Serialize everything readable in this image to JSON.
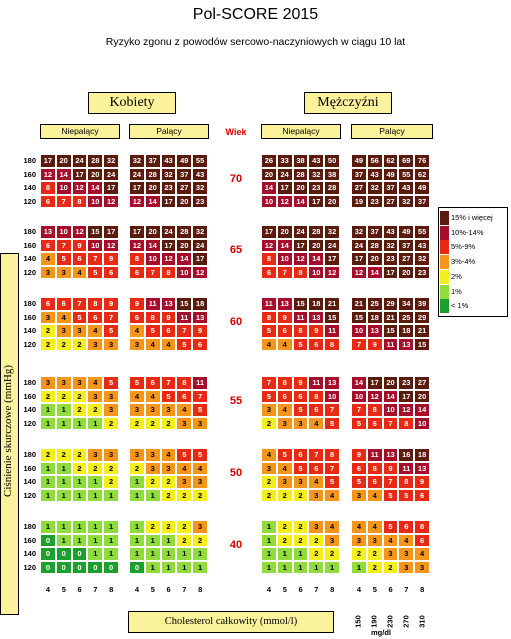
{
  "title": "Pol-SCORE 2015",
  "subtitle": "Ryzyko zgonu z powodów sercowo-naczyniowych w ciągu 10 lat",
  "women_label": "Kobiety",
  "men_label": "Mężczyźni",
  "nonsmoker_label": "Niepalący",
  "smoker_label": "Palący",
  "age_header": "Wiek",
  "y_axis_label": "Ciśnienie skurczowe (mmHg)",
  "x_axis_label": "Cholesterol całkowity (mmol/l)",
  "mgdl_unit": "mg/dl",
  "mgdl_ticks": [
    "150",
    "190",
    "230",
    "270",
    "310"
  ],
  "legend": [
    {
      "label": "15% i więcej",
      "color": "#5a1a0c"
    },
    {
      "label": "10%-14%",
      "color": "#a50d2a"
    },
    {
      "label": "5%-9%",
      "color": "#e82a14"
    },
    {
      "label": "3%-4%",
      "color": "#f5961a"
    },
    {
      "label": "2%",
      "color": "#f4ee1d"
    },
    {
      "label": "1%",
      "color": "#90dc3c"
    },
    {
      "label": "< 1%",
      "color": "#1ba02e"
    }
  ],
  "chart_data": {
    "type": "table",
    "title": "Pol-SCORE 2015",
    "subtitle": "Ryzyko zgonu z powodów sercowo-naczyniowych w ciągu 10 lat",
    "ages": [
      70,
      65,
      60,
      55,
      50,
      40
    ],
    "systolic_bp": [
      180,
      160,
      140,
      120
    ],
    "cholesterol": [
      4,
      5,
      6,
      7,
      8
    ],
    "groups": [
      "women_nonsmoker",
      "women_smoker",
      "men_nonsmoker",
      "men_smoker"
    ],
    "values": {
      "70": {
        "women_nonsmoker": [
          [
            17,
            20,
            24,
            28,
            32
          ],
          [
            12,
            14,
            17,
            20,
            24
          ],
          [
            8,
            10,
            12,
            14,
            17
          ],
          [
            6,
            7,
            8,
            10,
            12
          ]
        ],
        "women_smoker": [
          [
            32,
            37,
            43,
            49,
            55
          ],
          [
            24,
            28,
            32,
            37,
            43
          ],
          [
            17,
            20,
            23,
            27,
            32
          ],
          [
            12,
            14,
            17,
            20,
            23
          ]
        ],
        "men_nonsmoker": [
          [
            26,
            33,
            38,
            43,
            50
          ],
          [
            20,
            24,
            28,
            32,
            38
          ],
          [
            14,
            17,
            20,
            23,
            28
          ],
          [
            10,
            12,
            14,
            17,
            20
          ]
        ],
        "men_smoker": [
          [
            49,
            56,
            62,
            69,
            76
          ],
          [
            37,
            43,
            49,
            55,
            62
          ],
          [
            27,
            32,
            37,
            43,
            49
          ],
          [
            19,
            23,
            27,
            32,
            37
          ]
        ]
      },
      "65": {
        "women_nonsmoker": [
          [
            13,
            10,
            12,
            15,
            17
          ],
          [
            6,
            7,
            9,
            10,
            12
          ],
          [
            4,
            5,
            6,
            7,
            9
          ],
          [
            3,
            3,
            4,
            5,
            6
          ]
        ],
        "women_smoker": [
          [
            17,
            20,
            24,
            28,
            32
          ],
          [
            12,
            14,
            17,
            20,
            24
          ],
          [
            8,
            10,
            12,
            14,
            17
          ],
          [
            6,
            7,
            8,
            10,
            12
          ]
        ],
        "men_nonsmoker": [
          [
            17,
            20,
            24,
            28,
            32
          ],
          [
            12,
            14,
            17,
            20,
            24
          ],
          [
            8,
            10,
            12,
            14,
            17
          ],
          [
            6,
            7,
            8,
            10,
            12
          ]
        ],
        "men_smoker": [
          [
            32,
            37,
            43,
            49,
            55
          ],
          [
            24,
            28,
            32,
            37,
            43
          ],
          [
            17,
            20,
            23,
            27,
            32
          ],
          [
            12,
            14,
            17,
            20,
            23
          ]
        ]
      },
      "60": {
        "women_nonsmoker": [
          [
            6,
            6,
            7,
            8,
            9
          ],
          [
            3,
            4,
            5,
            6,
            7
          ],
          [
            2,
            3,
            3,
            4,
            5
          ],
          [
            2,
            2,
            2,
            3,
            3
          ]
        ],
        "women_smoker": [
          [
            9,
            11,
            13,
            15,
            18
          ],
          [
            6,
            8,
            9,
            11,
            13
          ],
          [
            4,
            5,
            6,
            7,
            9
          ],
          [
            3,
            4,
            4,
            5,
            6
          ]
        ],
        "men_nonsmoker": [
          [
            11,
            13,
            15,
            18,
            21
          ],
          [
            8,
            9,
            11,
            13,
            15
          ],
          [
            5,
            6,
            8,
            9,
            11
          ],
          [
            4,
            4,
            5,
            6,
            8
          ]
        ],
        "men_smoker": [
          [
            21,
            25,
            29,
            34,
            39
          ],
          [
            15,
            18,
            21,
            25,
            29
          ],
          [
            10,
            13,
            15,
            18,
            21
          ],
          [
            7,
            9,
            11,
            13,
            15
          ]
        ]
      },
      "55": {
        "women_nonsmoker": [
          [
            3,
            3,
            3,
            4,
            5
          ],
          [
            2,
            2,
            2,
            3,
            3
          ],
          [
            1,
            1,
            2,
            2,
            3
          ],
          [
            1,
            1,
            1,
            1,
            2
          ]
        ],
        "women_smoker": [
          [
            5,
            6,
            7,
            8,
            11
          ],
          [
            4,
            4,
            5,
            6,
            7
          ],
          [
            3,
            3,
            3,
            4,
            5
          ],
          [
            2,
            2,
            2,
            3,
            3
          ]
        ],
        "men_nonsmoker": [
          [
            7,
            8,
            9,
            11,
            13
          ],
          [
            5,
            6,
            6,
            8,
            10
          ],
          [
            3,
            4,
            5,
            6,
            7
          ],
          [
            2,
            3,
            3,
            4,
            5
          ]
        ],
        "men_smoker": [
          [
            14,
            17,
            20,
            23,
            27
          ],
          [
            10,
            12,
            14,
            17,
            20
          ],
          [
            7,
            8,
            10,
            12,
            14
          ],
          [
            5,
            6,
            7,
            8,
            10
          ]
        ]
      },
      "50": {
        "women_nonsmoker": [
          [
            2,
            2,
            2,
            3,
            3
          ],
          [
            1,
            1,
            2,
            2,
            2
          ],
          [
            1,
            1,
            1,
            1,
            2
          ],
          [
            1,
            1,
            1,
            1,
            1
          ]
        ],
        "women_smoker": [
          [
            3,
            3,
            4,
            5,
            5
          ],
          [
            2,
            3,
            3,
            4,
            4
          ],
          [
            1,
            2,
            2,
            3,
            3
          ],
          [
            1,
            1,
            2,
            2,
            2
          ]
        ],
        "men_nonsmoker": [
          [
            4,
            5,
            6,
            7,
            8
          ],
          [
            3,
            4,
            5,
            6,
            7
          ],
          [
            2,
            3,
            3,
            4,
            5
          ],
          [
            2,
            2,
            2,
            3,
            4
          ]
        ],
        "men_smoker": [
          [
            9,
            11,
            13,
            16,
            18
          ],
          [
            6,
            8,
            9,
            11,
            13
          ],
          [
            5,
            6,
            7,
            8,
            9
          ],
          [
            3,
            4,
            5,
            5,
            6
          ]
        ]
      },
      "40": {
        "women_nonsmoker": [
          [
            1,
            1,
            1,
            1,
            1
          ],
          [
            0,
            1,
            1,
            1,
            1
          ],
          [
            0,
            0,
            0,
            1,
            1
          ],
          [
            0,
            0,
            0,
            0,
            0
          ]
        ],
        "women_smoker": [
          [
            1,
            2,
            2,
            2,
            3
          ],
          [
            1,
            1,
            1,
            2,
            2
          ],
          [
            1,
            1,
            1,
            1,
            1
          ],
          [
            0,
            1,
            1,
            1,
            1
          ]
        ],
        "men_nonsmoker": [
          [
            1,
            2,
            2,
            3,
            4
          ],
          [
            1,
            2,
            2,
            2,
            3
          ],
          [
            1,
            1,
            1,
            2,
            2
          ],
          [
            1,
            1,
            1,
            1,
            1
          ]
        ],
        "men_smoker": [
          [
            4,
            4,
            5,
            6,
            8
          ],
          [
            3,
            3,
            4,
            4,
            6
          ],
          [
            2,
            2,
            3,
            3,
            4
          ],
          [
            1,
            2,
            2,
            3,
            3
          ]
        ]
      }
    },
    "legend": [
      "15% i więcej",
      "10%-14%",
      "5%-9%",
      "3%-4%",
      "2%",
      "1%",
      "< 1%"
    ],
    "xlabel": "Cholesterol całkowity (mmol/l)",
    "ylabel": "Ciśnienie skurczowe (mmHg)",
    "mgdl": [
      150,
      190,
      230,
      270,
      310
    ]
  }
}
